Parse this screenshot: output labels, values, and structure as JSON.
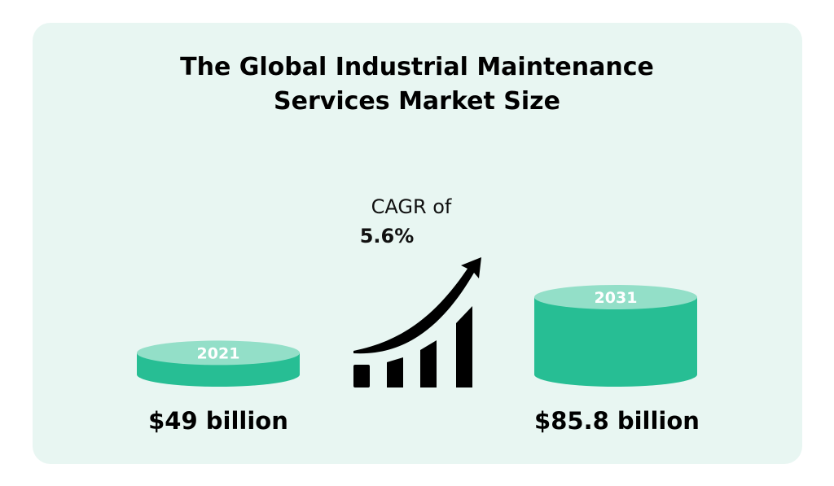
{
  "title_line1": "The Global Industrial Maintenance",
  "title_line2": "Services Market Size",
  "cagr": {
    "label": "CAGR of",
    "value": "5.6%"
  },
  "colors": {
    "background": "#e8f6f2",
    "cylinder_side": "#27be94",
    "cylinder_top": "#93dfc8",
    "icon": "#000000"
  },
  "chart_data": {
    "type": "bar",
    "title": "The Global Industrial Maintenance Services Market Size",
    "categories": [
      "2021",
      "2031"
    ],
    "values": [
      49,
      85.8
    ],
    "units": "billion USD",
    "value_labels": [
      "$49 billion",
      "$85.8 billion"
    ],
    "annotation": "CAGR of 5.6%"
  }
}
